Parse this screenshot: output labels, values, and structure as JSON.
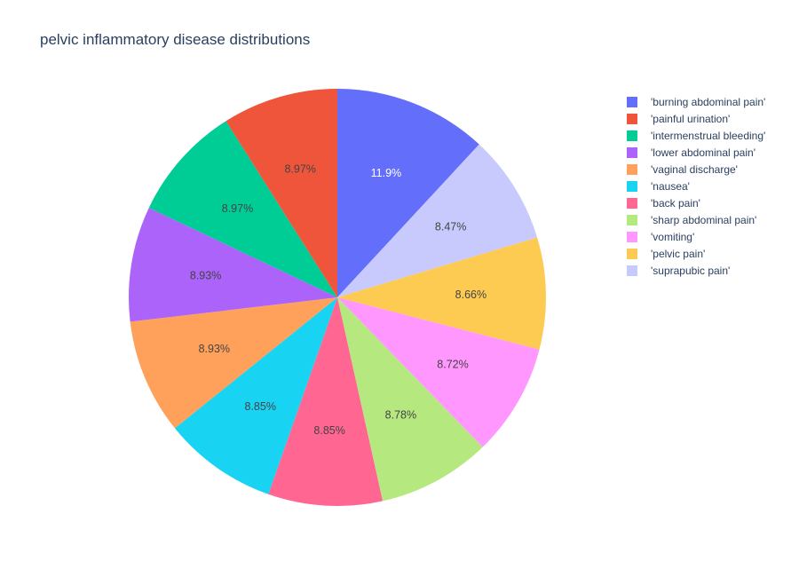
{
  "chart_data": {
    "type": "pie",
    "title": "pelvic inflammatory disease distributions",
    "direction": "clockwise",
    "start": "12 o'clock",
    "legend_position": "right",
    "slices": [
      {
        "label": "'burning abdominal pain'",
        "value": 11.9,
        "text": "11.9%",
        "color": "#636efa",
        "text_color": "#ffffff"
      },
      {
        "label": "'suprapubic pain'",
        "value": 8.47,
        "text": "8.47%",
        "color": "#c8cafd",
        "text_color": "#444444"
      },
      {
        "label": "'pelvic pain'",
        "value": 8.66,
        "text": "8.66%",
        "color": "#fecb52",
        "text_color": "#444444"
      },
      {
        "label": "'vomiting'",
        "value": 8.72,
        "text": "8.72%",
        "color": "#ff97ff",
        "text_color": "#444444"
      },
      {
        "label": "'sharp abdominal pain'",
        "value": 8.78,
        "text": "8.78%",
        "color": "#b6e880",
        "text_color": "#444444"
      },
      {
        "label": "'back pain'",
        "value": 8.85,
        "text": "8.85%",
        "color": "#ff6692",
        "text_color": "#444444"
      },
      {
        "label": "'nausea'",
        "value": 8.85,
        "text": "8.85%",
        "color": "#19d3f3",
        "text_color": "#444444"
      },
      {
        "label": "'vaginal discharge'",
        "value": 8.93,
        "text": "8.93%",
        "color": "#ffa15a",
        "text_color": "#444444"
      },
      {
        "label": "'lower abdominal pain'",
        "value": 8.93,
        "text": "8.93%",
        "color": "#ab63fa",
        "text_color": "#444444"
      },
      {
        "label": "'intermenstrual bleeding'",
        "value": 8.97,
        "text": "8.97%",
        "color": "#00cc96",
        "text_color": "#444444"
      },
      {
        "label": "'painful urination'",
        "value": 8.97,
        "text": "8.97%",
        "color": "#ef553b",
        "text_color": "#444444"
      }
    ],
    "legend": [
      {
        "label": "'burning abdominal pain'",
        "color": "#636efa"
      },
      {
        "label": "'painful urination'",
        "color": "#ef553b"
      },
      {
        "label": "'intermenstrual bleeding'",
        "color": "#00cc96"
      },
      {
        "label": "'lower abdominal pain'",
        "color": "#ab63fa"
      },
      {
        "label": "'vaginal discharge'",
        "color": "#ffa15a"
      },
      {
        "label": "'nausea'",
        "color": "#19d3f3"
      },
      {
        "label": "'back pain'",
        "color": "#ff6692"
      },
      {
        "label": "'sharp abdominal pain'",
        "color": "#b6e880"
      },
      {
        "label": "'vomiting'",
        "color": "#ff97ff"
      },
      {
        "label": "'pelvic pain'",
        "color": "#fecb52"
      },
      {
        "label": "'suprapubic pain'",
        "color": "#c8cafd"
      }
    ]
  }
}
